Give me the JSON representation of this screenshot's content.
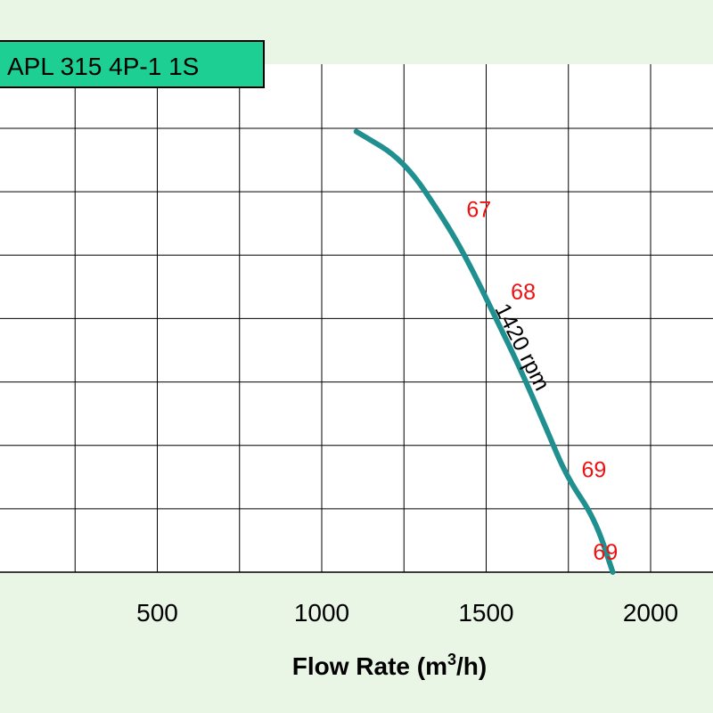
{
  "chart_data": {
    "type": "line",
    "title": "APL 315 4P-1 1S",
    "xlabel": "Flow Rate (m",
    "xlabel_sup": "3",
    "xlabel_suffix": "/h)",
    "ylabel": "",
    "xlim": [
      0,
      2200
    ],
    "ylim": [
      0,
      7
    ],
    "x_ticks": [
      500,
      1000,
      1500,
      2000
    ],
    "x_tick_labels": [
      "500",
      "1000",
      "1500",
      "2000"
    ],
    "grid": true,
    "y_gridlines": [
      1,
      2,
      3,
      4,
      5,
      6,
      7
    ],
    "series": [
      {
        "name": "1420 rpm",
        "color": "#1f8f8f",
        "points": [
          {
            "x": 1105,
            "y": 6.95
          },
          {
            "x": 1250,
            "y": 6.5
          },
          {
            "x": 1380,
            "y": 5.5
          },
          {
            "x": 1450,
            "y": 4.85
          },
          {
            "x": 1530,
            "y": 4.0
          },
          {
            "x": 1600,
            "y": 3.25
          },
          {
            "x": 1680,
            "y": 2.3
          },
          {
            "x": 1745,
            "y": 1.5
          },
          {
            "x": 1830,
            "y": 0.85
          },
          {
            "x": 1885,
            "y": 0.0
          }
        ]
      }
    ],
    "annotations": [
      {
        "text": "67",
        "x": 1440,
        "y": 5.6,
        "color": "#ee1111"
      },
      {
        "text": "68",
        "x": 1575,
        "y": 4.3,
        "color": "#ee1111"
      },
      {
        "text": "69",
        "x": 1790,
        "y": 1.5,
        "color": "#ee1111"
      },
      {
        "text": "69",
        "x": 1825,
        "y": 0.2,
        "color": "#ee1111"
      }
    ],
    "colors": {
      "background": "#e9f5e5",
      "plot_background": "#ffffff",
      "title_box": "#1dcf93",
      "grid": "#000000"
    }
  }
}
